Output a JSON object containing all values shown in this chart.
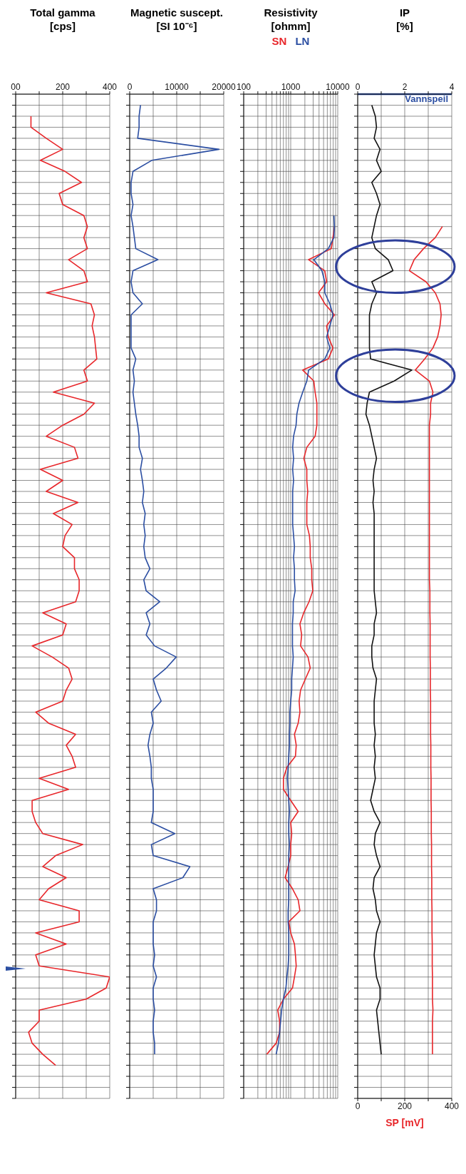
{
  "chart_data": [
    {
      "type": "line",
      "orientation": "horizontal",
      "title": "Total gamma",
      "subtitle": "[cps]",
      "categories": [
        null,
        null,
        null,
        null,
        null,
        null,
        null,
        null,
        null,
        null,
        null,
        null,
        null,
        null,
        null,
        null,
        null,
        null,
        null,
        null,
        null,
        null,
        null,
        null,
        null,
        null,
        null,
        null,
        null,
        null,
        null,
        null,
        null,
        null,
        null,
        null,
        null,
        null,
        null,
        null,
        null,
        null,
        null,
        null,
        null,
        null,
        null,
        null,
        null,
        null,
        null,
        null,
        null,
        null,
        null,
        null,
        null,
        null,
        null,
        null,
        null,
        null,
        null,
        null,
        null,
        null,
        null,
        null,
        null,
        null,
        null,
        null,
        null,
        null,
        null,
        null,
        null,
        null,
        null,
        null,
        null,
        null,
        null,
        null,
        null,
        null,
        null,
        null,
        null,
        null,
        null,
        null
      ],
      "series": [
        {
          "color": "#e8262a",
          "values": [
            null,
            null,
            65,
            65,
            130,
            200,
            105,
            210,
            280,
            185,
            200,
            290,
            305,
            290,
            305,
            225,
            290,
            305,
            130,
            320,
            335,
            325,
            335,
            340,
            345,
            290,
            305,
            160,
            335,
            290,
            200,
            130,
            250,
            265,
            105,
            200,
            130,
            265,
            160,
            240,
            210,
            200,
            250,
            250,
            270,
            270,
            255,
            115,
            215,
            200,
            70,
            155,
            225,
            240,
            215,
            200,
            85,
            140,
            255,
            215,
            240,
            255,
            100,
            225,
            70,
            70,
            85,
            115,
            285,
            170,
            115,
            215,
            140,
            100,
            270,
            270,
            85,
            215,
            85,
            100,
            400,
            385,
            300,
            100,
            100,
            55,
            70,
            115,
            170,
            null,
            null,
            null
          ]
        }
      ],
      "xlim": [
        0,
        400
      ],
      "xticks": [
        {
          "value": 0,
          "label": "00"
        },
        {
          "value": 100,
          "label": null
        },
        200,
        {
          "value": 300,
          "label": null
        },
        400
      ],
      "grid": true,
      "tick_labels": "x"
    },
    {
      "type": "line",
      "orientation": "horizontal",
      "title": "Magnetic suscept.",
      "subtitle": "[SI 10⁻⁶]",
      "categories": [
        null,
        null,
        null,
        null,
        null,
        null,
        null,
        null,
        null,
        null,
        null,
        null,
        null,
        null,
        null,
        null,
        null,
        null,
        null,
        null,
        null,
        null,
        null,
        null,
        null,
        null,
        null,
        null,
        null,
        null,
        null,
        null,
        null,
        null,
        null,
        null,
        null,
        null,
        null,
        null,
        null,
        null,
        null,
        null,
        null,
        null,
        null,
        null,
        null,
        null,
        null,
        null,
        null,
        null,
        null,
        null,
        null,
        null,
        null,
        null,
        null,
        null,
        null,
        null,
        null,
        null,
        null,
        null,
        null,
        null,
        null,
        null,
        null,
        null,
        null,
        null,
        null,
        null,
        null,
        null,
        null,
        null,
        null,
        null,
        null,
        null,
        null,
        null,
        null,
        null,
        null,
        null
      ],
      "series": [
        {
          "color": "#2b4ea2",
          "values": [
            null,
            2300,
            2000,
            2000,
            1700,
            19000,
            4700,
            700,
            300,
            300,
            700,
            300,
            700,
            1000,
            1300,
            6000,
            700,
            300,
            700,
            2700,
            300,
            300,
            300,
            300,
            1300,
            700,
            1000,
            700,
            1000,
            1300,
            1700,
            2000,
            2000,
            2700,
            2300,
            2700,
            3000,
            2700,
            3300,
            3000,
            3300,
            3000,
            3300,
            4300,
            3000,
            3500,
            6400,
            3500,
            4300,
            3500,
            5300,
            9900,
            7800,
            5000,
            5700,
            6700,
            4600,
            5000,
            4300,
            3900,
            4300,
            4600,
            4600,
            5000,
            5000,
            5000,
            4600,
            9600,
            4600,
            5000,
            12800,
            11300,
            5000,
            5700,
            5700,
            5000,
            5000,
            5000,
            5300,
            5000,
            5700,
            5000,
            5000,
            5300,
            5000,
            5000,
            5300,
            5300,
            null,
            null,
            null,
            null
          ]
        }
      ],
      "xlim": [
        0,
        20000
      ],
      "xticks": [
        0,
        {
          "value": 5000,
          "label": null
        },
        10000,
        {
          "value": 15000,
          "label": null
        },
        20000
      ],
      "grid": true,
      "tick_labels": "x"
    },
    {
      "type": "line",
      "orientation": "horizontal",
      "title": "Resistivity",
      "subtitle": "[ohmm]",
      "legend": "top",
      "log": "x",
      "categories": [
        null,
        null,
        null,
        null,
        null,
        null,
        null,
        null,
        null,
        null,
        null,
        null,
        null,
        null,
        null,
        null,
        null,
        null,
        null,
        null,
        null,
        null,
        null,
        null,
        null,
        null,
        null,
        null,
        null,
        null,
        null,
        null,
        null,
        null,
        null,
        null,
        null,
        null,
        null,
        null,
        null,
        null,
        null,
        null,
        null,
        null,
        null,
        null,
        null,
        null,
        null,
        null,
        null,
        null,
        null,
        null,
        null,
        null,
        null,
        null,
        null,
        null,
        null,
        null,
        null,
        null,
        null,
        null,
        null,
        null,
        null,
        null,
        null,
        null,
        null,
        null,
        null,
        null,
        null,
        null,
        null,
        null,
        null,
        null,
        null,
        null,
        null,
        null,
        null,
        null,
        null,
        null
      ],
      "series": [
        {
          "name": "SN",
          "color": "#e8262a",
          "values": [
            null,
            null,
            null,
            null,
            null,
            null,
            null,
            null,
            null,
            null,
            null,
            null,
            8500,
            7900,
            7300,
            2400,
            5300,
            5800,
            3900,
            5300,
            8500,
            5800,
            6300,
            7900,
            6300,
            1800,
            3100,
            3300,
            3600,
            3600,
            3600,
            3300,
            2200,
            1900,
            2200,
            2200,
            2300,
            2200,
            2200,
            2200,
            2500,
            2600,
            2600,
            2800,
            2800,
            2950,
            2450,
            1890,
            1570,
            1710,
            1620,
            2330,
            2600,
            2050,
            1620,
            1510,
            1570,
            1440,
            1200,
            1310,
            1260,
            830,
            700,
            700,
            1000,
            1440,
            1000,
            1050,
            1000,
            1000,
            880,
            760,
            1090,
            1440,
            1570,
            910,
            1000,
            1200,
            1260,
            1310,
            1200,
            1090,
            700,
            530,
            580,
            580,
            490,
            310,
            null,
            null,
            null,
            null
          ]
        },
        {
          "name": "LN",
          "color": "#2b4ea2",
          "values": [
            null,
            null,
            null,
            null,
            null,
            null,
            null,
            null,
            null,
            null,
            null,
            8300,
            8500,
            8300,
            6300,
            3100,
            4600,
            5300,
            5300,
            6800,
            7900,
            6800,
            5800,
            6800,
            5300,
            2400,
            2200,
            1800,
            1500,
            1350,
            1300,
            1150,
            1100,
            1150,
            1100,
            1150,
            1100,
            1100,
            1100,
            1100,
            1150,
            1200,
            1150,
            1200,
            1200,
            1240,
            1130,
            1130,
            1090,
            1090,
            1090,
            1130,
            1090,
            1050,
            1050,
            1000,
            960,
            960,
            940,
            940,
            910,
            880,
            850,
            880,
            910,
            940,
            910,
            910,
            940,
            910,
            910,
            910,
            910,
            910,
            880,
            880,
            910,
            910,
            910,
            880,
            830,
            790,
            700,
            640,
            610,
            580,
            550,
            490,
            null,
            null,
            null,
            null
          ]
        }
      ],
      "xlim": [
        100,
        10000
      ],
      "xticks": [
        100,
        {
          "value": 200,
          "label": null
        },
        {
          "value": 300,
          "label": null
        },
        {
          "value": 400,
          "label": null
        },
        {
          "value": 500,
          "label": null
        },
        {
          "value": 600,
          "label": null
        },
        {
          "value": 700,
          "label": null
        },
        {
          "value": 800,
          "label": null
        },
        {
          "value": 900,
          "label": null
        },
        1000,
        {
          "value": 2000,
          "label": null
        },
        {
          "value": 3000,
          "label": null
        },
        {
          "value": 4000,
          "label": null
        },
        {
          "value": 5000,
          "label": null
        },
        {
          "value": 6000,
          "label": null
        },
        {
          "value": 7000,
          "label": null
        },
        {
          "value": 8000,
          "label": null
        },
        {
          "value": 9000,
          "label": null
        },
        10000
      ],
      "grid": true,
      "tick_labels": "x"
    },
    {
      "type": "line",
      "orientation": "horizontal",
      "title": "IP",
      "subtitle": "[%]",
      "xlabel": "SP [mV]",
      "categories": [
        null,
        null,
        null,
        null,
        null,
        null,
        null,
        null,
        null,
        null,
        null,
        null,
        null,
        null,
        null,
        null,
        null,
        null,
        null,
        null,
        null,
        null,
        null,
        null,
        null,
        null,
        null,
        null,
        null,
        null,
        null,
        null,
        null,
        null,
        null,
        null,
        null,
        null,
        null,
        null,
        null,
        null,
        null,
        null,
        null,
        null,
        null,
        null,
        null,
        null,
        null,
        null,
        null,
        null,
        null,
        null,
        null,
        null,
        null,
        null,
        null,
        null,
        null,
        null,
        null,
        null,
        null,
        null,
        null,
        null,
        null,
        null,
        null,
        null,
        null,
        null,
        null,
        null,
        null,
        null,
        null,
        null,
        null,
        null,
        null,
        null,
        null,
        null,
        null,
        null,
        null,
        null
      ],
      "series": [
        {
          "color": "#111111",
          "axis": "x2",
          "values": [
            null,
            0.6,
            0.75,
            0.8,
            0.7,
            0.95,
            0.8,
            1.0,
            0.6,
            0.8,
            0.95,
            0.8,
            0.7,
            0.6,
            0.75,
            1.3,
            1.5,
            0.6,
            0.8,
            0.6,
            0.5,
            0.5,
            0.5,
            0.5,
            0.55,
            2.3,
            1.55,
            0.5,
            0.4,
            0.35,
            0.5,
            0.6,
            0.7,
            0.8,
            0.7,
            0.65,
            0.7,
            0.65,
            0.7,
            0.7,
            0.7,
            0.7,
            0.7,
            0.7,
            0.7,
            0.7,
            0.75,
            0.8,
            0.7,
            0.7,
            0.6,
            0.6,
            0.65,
            0.8,
            0.75,
            0.7,
            0.7,
            0.7,
            0.75,
            0.7,
            0.75,
            0.7,
            0.75,
            0.65,
            0.55,
            0.7,
            0.95,
            0.75,
            0.7,
            0.8,
            0.95,
            0.7,
            0.65,
            0.75,
            0.8,
            0.95,
            0.8,
            0.75,
            0.7,
            0.75,
            0.8,
            0.95,
            0.95,
            0.8,
            0.85,
            0.9,
            0.95,
            1.0,
            null,
            null,
            null,
            null
          ]
        },
        {
          "color": "#e8262a",
          "values": [
            null,
            null,
            null,
            null,
            null,
            null,
            null,
            null,
            null,
            null,
            null,
            null,
            360,
            330,
            280,
            240,
            220,
            290,
            330,
            350,
            355,
            350,
            340,
            320,
            285,
            245,
            305,
            320,
            310,
            310,
            305,
            305,
            305,
            305,
            305,
            305,
            305,
            305,
            305,
            305,
            305,
            305,
            305,
            305,
            305,
            307,
            307,
            307,
            308,
            308,
            308,
            308,
            309,
            309,
            309,
            310,
            310,
            310,
            310,
            311,
            311,
            311,
            312,
            312,
            312,
            313,
            313,
            313,
            314,
            314,
            314,
            315,
            315,
            315,
            316,
            316,
            316,
            317,
            317,
            317,
            318,
            318,
            318,
            320,
            318,
            318,
            318,
            318,
            null,
            null,
            null,
            null
          ]
        }
      ],
      "xlim": [
        0,
        400
      ],
      "xticks": [
        0,
        {
          "value": 100,
          "label": null
        },
        200,
        {
          "value": 300,
          "label": null
        },
        400
      ],
      "x2lim": [
        0,
        4
      ],
      "x2ticks": [
        0,
        {
          "value": 1,
          "label": null
        },
        2,
        {
          "value": 3,
          "label": null
        },
        4
      ],
      "ref_lines": [
        {
          "axis": "y",
          "label": "Vannspeil",
          "color": "#2b4ea2"
        }
      ],
      "grid": true,
      "tick_labels": "x"
    }
  ]
}
